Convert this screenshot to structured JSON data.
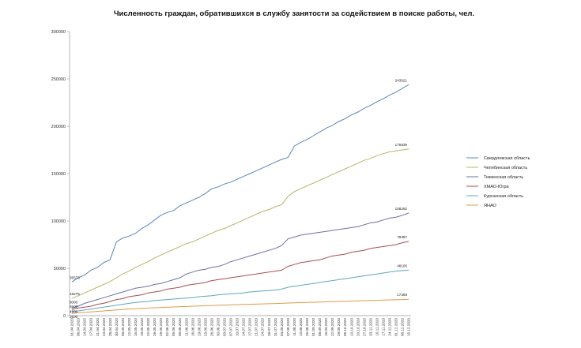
{
  "chart_data": {
    "type": "line",
    "title": "Численность граждан, обратившихся в службу занятости за содействием в поиске работы, чел.",
    "xlabel": "",
    "ylabel": "",
    "ylim": [
      0,
      300000
    ],
    "yticks": [
      "0",
      "50000",
      "100000",
      "150000",
      "200000",
      "250000",
      "300000"
    ],
    "grid": false,
    "legend_position": "right",
    "x": [
      "01.04.2020",
      "06.04.2020",
      "14.04.2020",
      "17.04.2020",
      "21.04.2020",
      "24.04.2020",
      "28.04.2020",
      "30.04.2020",
      "08.05.2020",
      "12.05.2020",
      "15.05.2020",
      "19.05.2020",
      "22.05.2020",
      "26.05.2020",
      "29.05.2020",
      "02.06.2020",
      "05.06.2020",
      "09.06.2020",
      "11.06.2020",
      "16.06.2020",
      "19.06.2020",
      "23.06.2020",
      "26.06.2020",
      "30.06.2020",
      "03.07.2020",
      "07.07.2020",
      "10.07.2020",
      "14.07.2020",
      "17.07.2020",
      "21.07.2020",
      "24.07.2020",
      "28.07.2020",
      "31.07.2020",
      "04.08.2020",
      "07.08.2020",
      "11.08.2020",
      "14.08.2020",
      "25.08.2020",
      "01.09.2020",
      "08.09.2020",
      "15.09.2020",
      "22.09.2020",
      "29.09.2020",
      "06.10.2020",
      "13.10.2020",
      "20.10.2020",
      "27.10.2020",
      "03.11.2020",
      "10.11.2020",
      "17.11.2020",
      "24.11.2020",
      "01.12.2020",
      "08.12.2020",
      "15.12.2020"
    ],
    "series": [
      {
        "name": "Свердловская область",
        "color": "#5b86b8",
        "label_first": "35573",
        "label_last": "243921",
        "values": [
          35573,
          40000,
          43000,
          48000,
          51000,
          56000,
          59000,
          78000,
          82000,
          84000,
          87000,
          92000,
          96000,
          101000,
          106000,
          109000,
          111000,
          116000,
          119000,
          122000,
          125000,
          129000,
          134000,
          136000,
          139000,
          141000,
          144000,
          147000,
          150000,
          153000,
          156000,
          159000,
          162000,
          165000,
          167000,
          179000,
          183000,
          186000,
          190000,
          194000,
          198000,
          201000,
          205000,
          208000,
          212000,
          215000,
          219000,
          222000,
          226000,
          229000,
          233000,
          236000,
          240000,
          243921
        ]
      },
      {
        "name": "Челябинская область",
        "color": "#b8b36a",
        "label_first": "18275",
        "label_last": "175939",
        "values": [
          18275,
          21000,
          24000,
          27000,
          30000,
          33000,
          36000,
          40000,
          44000,
          47000,
          51000,
          54000,
          57000,
          61000,
          64000,
          67000,
          70000,
          73000,
          76000,
          78000,
          81000,
          84000,
          87000,
          90000,
          92000,
          95000,
          98000,
          101000,
          104000,
          107000,
          110000,
          112000,
          115000,
          117000,
          126000,
          131000,
          134000,
          137000,
          140000,
          143000,
          146000,
          149000,
          152000,
          155000,
          158000,
          161000,
          164000,
          166000,
          169000,
          171000,
          173000,
          174000,
          175000,
          175939
        ]
      },
      {
        "name": "Тюменская область",
        "color": "#6d70a8",
        "label_first": "8000",
        "label_last": "108292",
        "values": [
          8000,
          10000,
          13000,
          15000,
          17000,
          19000,
          21000,
          23000,
          25000,
          27000,
          29000,
          30000,
          31000,
          33000,
          34000,
          36000,
          38000,
          40000,
          44000,
          46000,
          48000,
          49000,
          51000,
          52000,
          54000,
          57000,
          59000,
          61000,
          63000,
          65000,
          67000,
          69000,
          71000,
          74000,
          81000,
          83000,
          85000,
          86000,
          87000,
          88000,
          89000,
          90000,
          91000,
          92000,
          93000,
          94000,
          96000,
          98000,
          99000,
          101000,
          103000,
          104000,
          106000,
          108292
        ]
      },
      {
        "name": "ХМАО-Югра",
        "color": "#a84f52",
        "label_first": "6500",
        "label_last": "78387",
        "values": [
          6500,
          8000,
          9000,
          10000,
          12000,
          13000,
          15000,
          17000,
          18000,
          20000,
          21000,
          22000,
          24000,
          25000,
          26000,
          28000,
          29000,
          30000,
          32000,
          33000,
          34000,
          35000,
          37000,
          38000,
          39000,
          40000,
          41000,
          42000,
          43000,
          44000,
          45000,
          46000,
          47000,
          48000,
          52000,
          54000,
          56000,
          57000,
          58000,
          59000,
          61000,
          63000,
          64000,
          65000,
          67000,
          68000,
          69000,
          71000,
          72000,
          73000,
          74000,
          75000,
          77000,
          78387
        ]
      },
      {
        "name": "Курганская область",
        "color": "#5ea8bd",
        "label_first": "4500",
        "label_last": "48105",
        "values": [
          4500,
          5000,
          6000,
          7000,
          8000,
          9000,
          10000,
          11000,
          12000,
          13000,
          14000,
          14500,
          15000,
          16000,
          16500,
          17000,
          17500,
          18000,
          18500,
          19000,
          20000,
          20500,
          21000,
          22000,
          22500,
          23000,
          23500,
          24000,
          25000,
          25500,
          26000,
          26500,
          27000,
          28000,
          30000,
          31000,
          32000,
          33000,
          34000,
          35000,
          36000,
          37000,
          38000,
          39000,
          40000,
          41000,
          42000,
          43000,
          44000,
          45000,
          46000,
          47000,
          47500,
          48105
        ]
      },
      {
        "name": "ЯНАО",
        "color": "#e09a4a",
        "label_first": "2500",
        "label_last": "17368",
        "values": [
          2500,
          3000,
          3500,
          4000,
          4500,
          5000,
          5500,
          6000,
          6500,
          7000,
          7300,
          7600,
          8000,
          8300,
          8600,
          9000,
          9200,
          9500,
          9700,
          10000,
          10200,
          10500,
          10700,
          11000,
          11200,
          11400,
          11600,
          11800,
          12000,
          12200,
          12400,
          12600,
          12800,
          13000,
          13300,
          13500,
          13800,
          14000,
          14200,
          14400,
          14600,
          14800,
          15000,
          15200,
          15400,
          15600,
          15800,
          16000,
          16200,
          16400,
          16600,
          16800,
          17000,
          17368
        ]
      }
    ]
  }
}
